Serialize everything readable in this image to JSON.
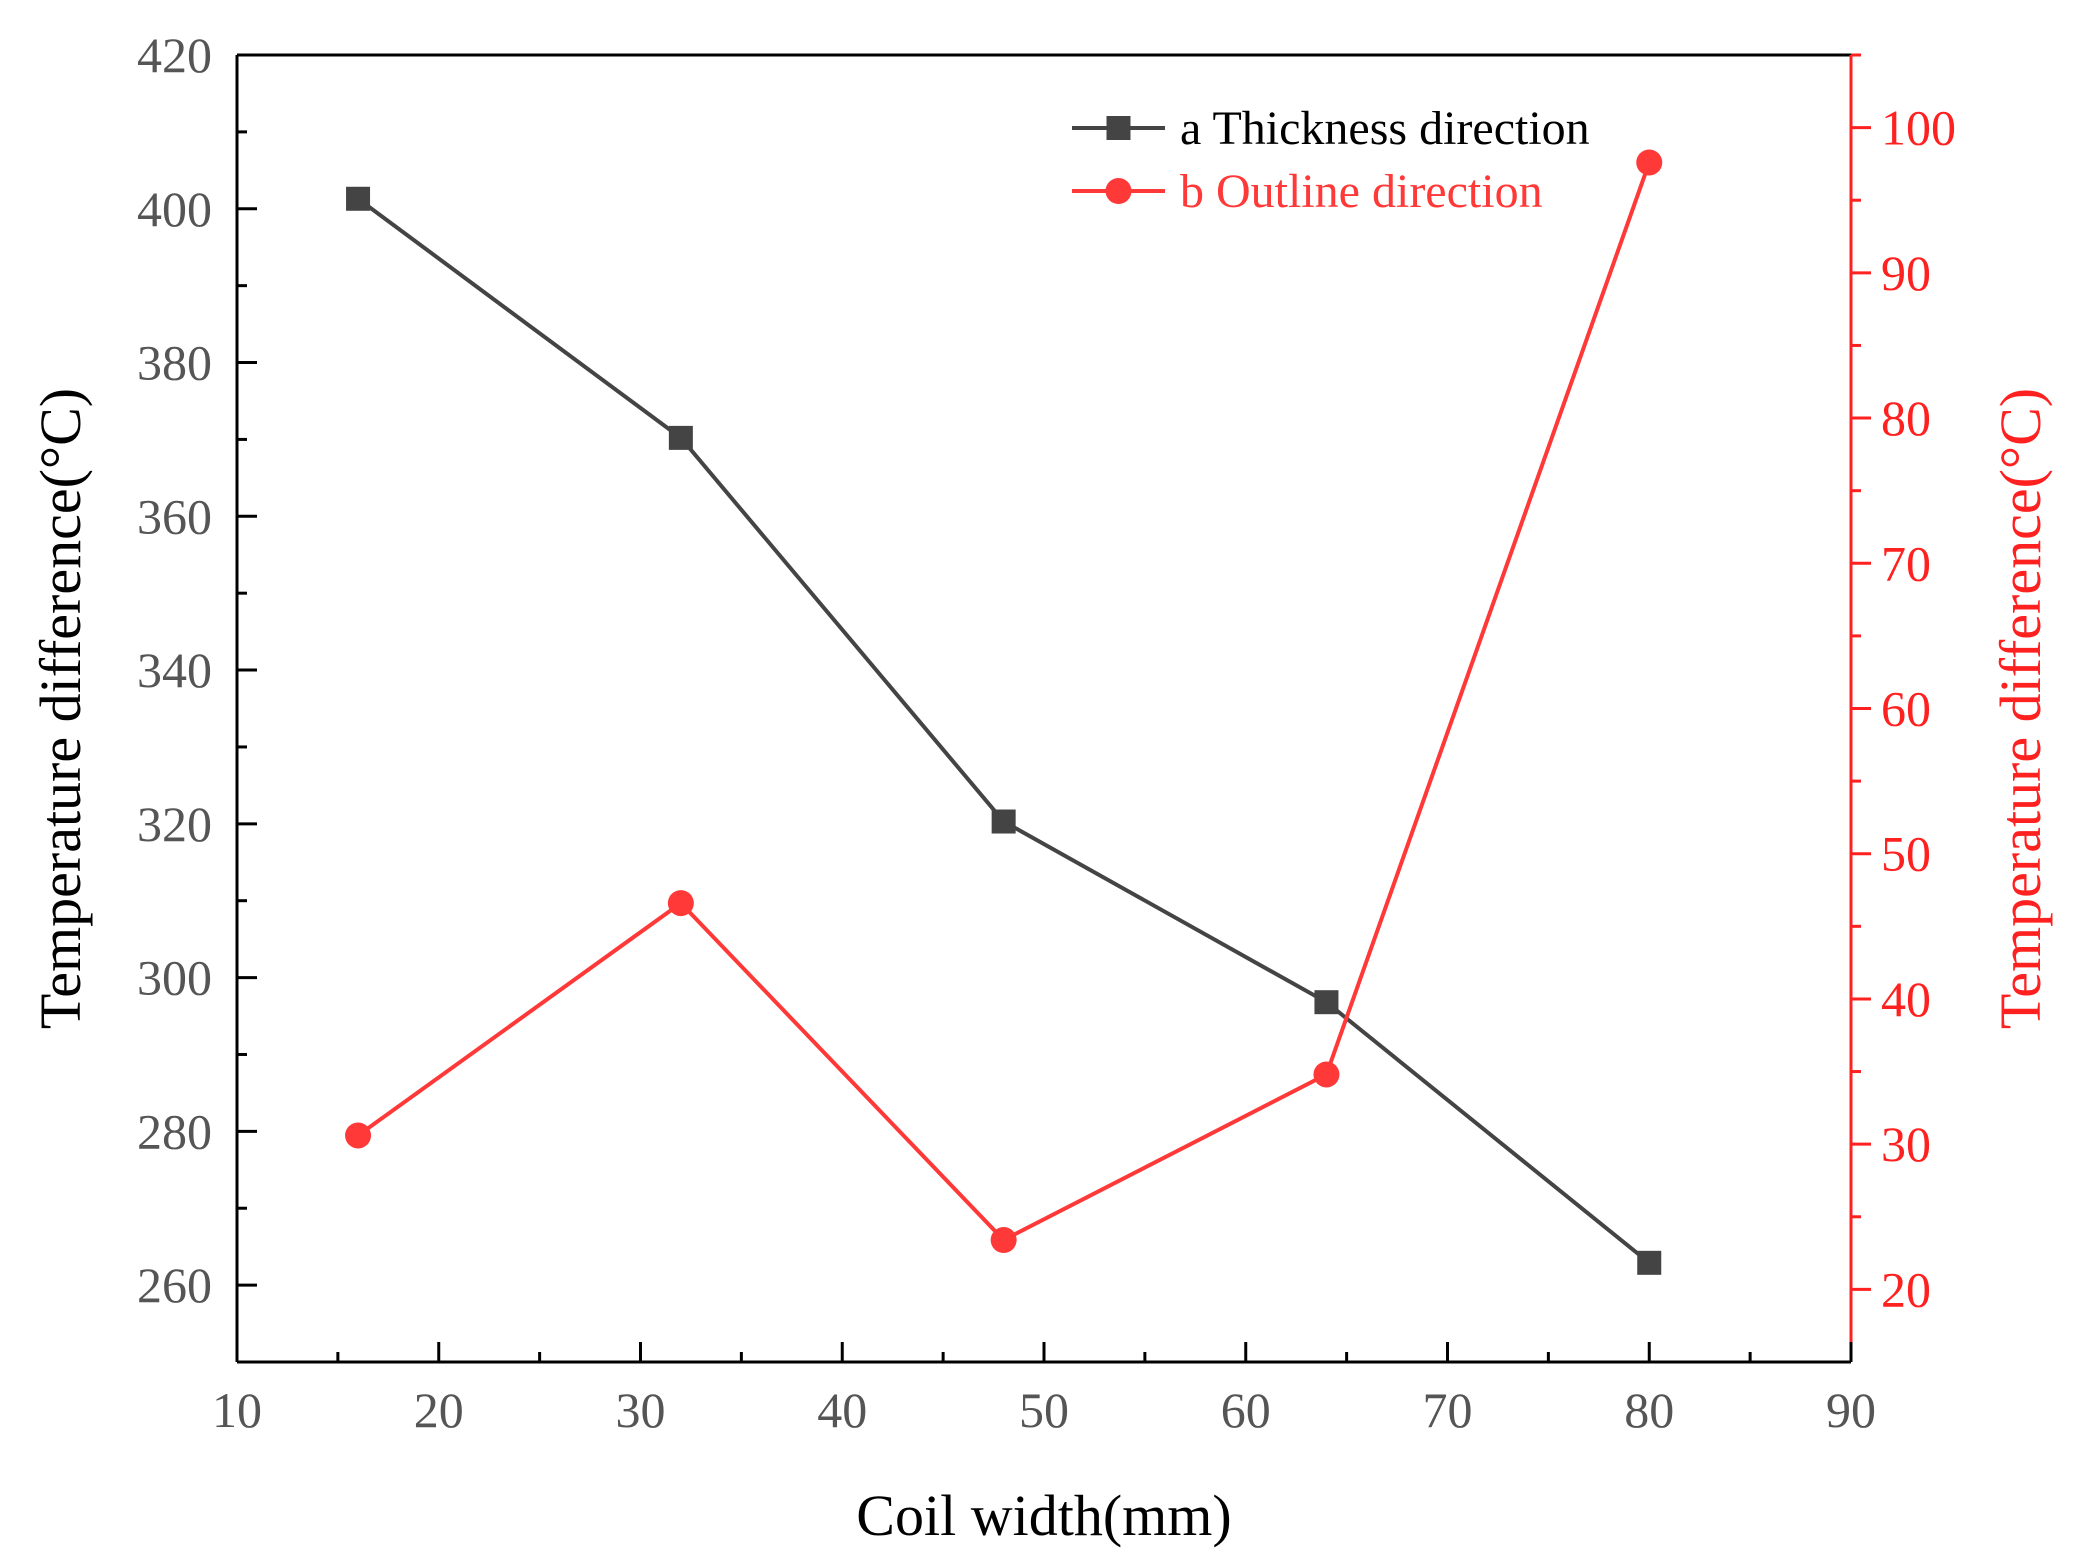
{
  "chart_data": {
    "type": "line",
    "xlabel": "Coil width(mm)",
    "ylabel_left": "Temperature difference(°C)",
    "ylabel_right": "Temperature difference(°C)",
    "xlim": [
      10,
      90
    ],
    "ylim_left": [
      250,
      420
    ],
    "ylim_right": [
      15,
      105
    ],
    "x_ticks": [
      "10",
      "20",
      "30",
      "40",
      "50",
      "60",
      "70",
      "80",
      "90"
    ],
    "y_ticks_left": [
      "260",
      "280",
      "300",
      "320",
      "340",
      "360",
      "380",
      "400",
      "420"
    ],
    "y_ticks_right": [
      "20",
      "30",
      "40",
      "50",
      "60",
      "70",
      "80",
      "90",
      "100"
    ],
    "grid": false,
    "legend_position": "top-right",
    "series": [
      {
        "name": "a Thickness direction",
        "axis": "left",
        "marker": "square",
        "color": "#444444",
        "x": [
          16,
          32,
          48,
          64,
          80
        ],
        "values": [
          401.3,
          370.2,
          320.3,
          296.8,
          262.9
        ]
      },
      {
        "name": "b Outline direction",
        "axis": "right",
        "marker": "circle",
        "color": "#ff3838",
        "x": [
          16,
          32,
          48,
          64,
          80
        ],
        "values": [
          30.6,
          46.6,
          23.4,
          34.8,
          97.6
        ]
      }
    ]
  },
  "colors": {
    "left_axis": "#000000",
    "right_axis": "#ff2020"
  }
}
